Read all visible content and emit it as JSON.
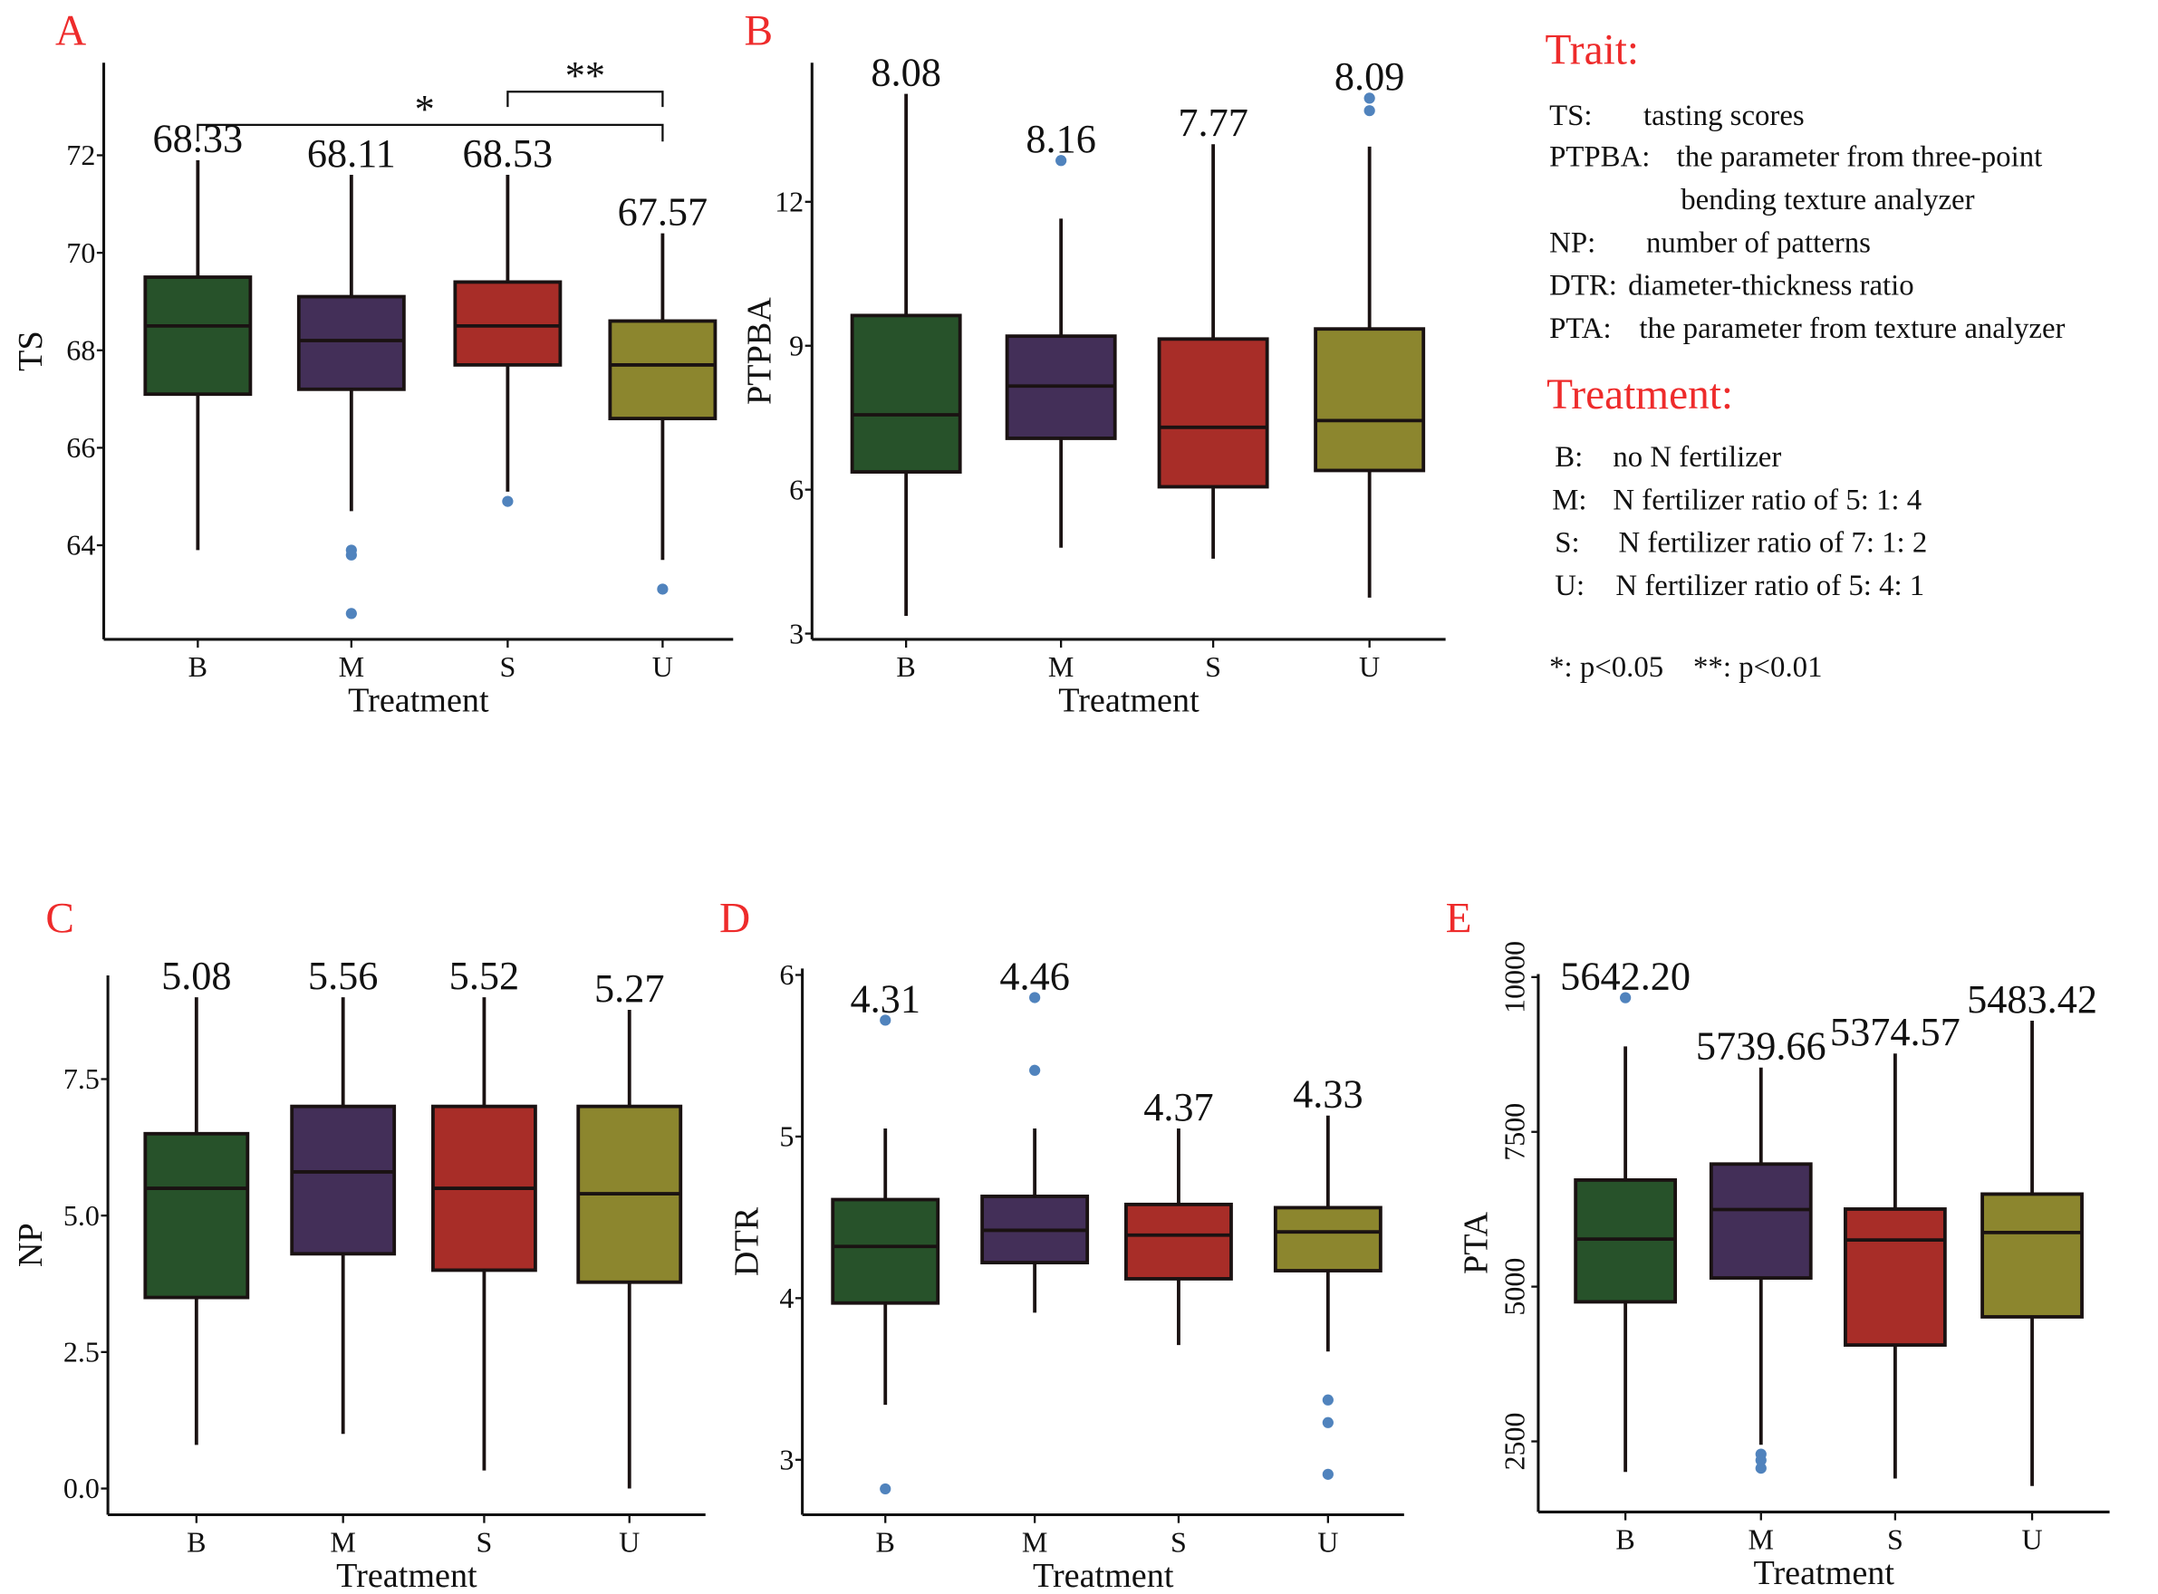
{
  "legend": {
    "trait_title": "Trait:",
    "traits": [
      {
        "abbr": "TS:",
        "text": "tasting scores"
      },
      {
        "abbr": "PTPBA:",
        "text": "the parameter from three-point"
      },
      {
        "abbr": "",
        "text": "bending texture analyzer"
      },
      {
        "abbr": "NP:",
        "text": "number of patterns"
      },
      {
        "abbr": "DTR:",
        "text": "diameter-thickness ratio"
      },
      {
        "abbr": "PTA:",
        "text": "the parameter from texture analyzer"
      }
    ],
    "treatment_title": "Treatment:",
    "treatments": [
      {
        "abbr": "B:",
        "text": "no N fertilizer"
      },
      {
        "abbr": "M:",
        "text": "N fertilizer ratio of 5: 1: 4"
      },
      {
        "abbr": "S:",
        "text": "N fertilizer ratio of 7: 1: 2"
      },
      {
        "abbr": "U:",
        "text": "N fertilizer ratio of 5: 4: 1"
      }
    ],
    "footnote": "*: p<0.05    **: p<0.01"
  },
  "colors": {
    "B": "#27522a",
    "M": "#432f58",
    "S": "#a82d28",
    "U": "#8c862e",
    "outlier": "#5083bd",
    "panel_letter": "#ee2b2b"
  },
  "chart_data": [
    {
      "panel": "A",
      "type": "box",
      "ylabel": "TS",
      "xlabel": "Treatment",
      "categories": [
        "B",
        "M",
        "S",
        "U"
      ],
      "yticks": [
        64,
        66,
        68,
        70,
        72
      ],
      "ylim": [
        62.07,
        73.9
      ],
      "grid": false,
      "boxes": [
        {
          "category": "B",
          "whisker_low": 63.9,
          "q1": 67.1,
          "median": 68.5,
          "q3": 69.5,
          "whisker_high": 71.9,
          "outliers": [],
          "mean_label": "68.33"
        },
        {
          "category": "M",
          "whisker_low": 64.7,
          "q1": 67.2,
          "median": 68.2,
          "q3": 69.1,
          "whisker_high": 71.6,
          "outliers": [
            63.9,
            63.8,
            62.6
          ],
          "mean_label": "68.11"
        },
        {
          "category": "S",
          "whisker_low": 65.1,
          "q1": 67.7,
          "median": 68.5,
          "q3": 69.4,
          "whisker_high": 71.6,
          "outliers": [
            64.9
          ],
          "mean_label": "68.53"
        },
        {
          "category": "U",
          "whisker_low": 63.7,
          "q1": 66.6,
          "median": 67.7,
          "q3": 68.6,
          "whisker_high": 70.4,
          "outliers": [
            63.1
          ],
          "mean_label": "67.57"
        }
      ],
      "significance": [
        {
          "from": "B",
          "to": "U",
          "label": "*"
        },
        {
          "from": "S",
          "to": "U",
          "label": "**"
        }
      ]
    },
    {
      "panel": "B",
      "type": "box",
      "ylabel": "PTPBA",
      "xlabel": "Treatment",
      "categories": [
        "B",
        "M",
        "S",
        "U"
      ],
      "yticks": [
        3,
        6,
        9,
        12
      ],
      "ylim": [
        2.88,
        14.9
      ],
      "grid": false,
      "boxes": [
        {
          "category": "B",
          "whisker_low": 3.37,
          "q1": 6.37,
          "median": 7.56,
          "q3": 9.63,
          "whisker_high": 14.25,
          "outliers": [],
          "mean_label": "8.08"
        },
        {
          "category": "M",
          "whisker_low": 4.79,
          "q1": 7.07,
          "median": 8.16,
          "q3": 9.2,
          "whisker_high": 11.65,
          "outliers": [
            12.86
          ],
          "mean_label": "8.16"
        },
        {
          "category": "S",
          "whisker_low": 4.56,
          "q1": 6.06,
          "median": 7.3,
          "q3": 9.14,
          "whisker_high": 13.2,
          "outliers": [],
          "mean_label": "7.77"
        },
        {
          "category": "U",
          "whisker_low": 3.75,
          "q1": 6.4,
          "median": 7.44,
          "q3": 9.35,
          "whisker_high": 13.15,
          "outliers": [
            14.16,
            13.9
          ],
          "mean_label": "8.09"
        }
      ]
    },
    {
      "panel": "C",
      "type": "box",
      "ylabel": "NP",
      "xlabel": "Treatment",
      "categories": [
        "B",
        "M",
        "S",
        "U"
      ],
      "yticks": [
        "0.0",
        "2.5",
        "5.0",
        "7.5"
      ],
      "ylim": [
        -0.48,
        9.4
      ],
      "grid": false,
      "boxes": [
        {
          "category": "B",
          "whisker_low": 0.8,
          "q1": 3.5,
          "median": 5.5,
          "q3": 6.5,
          "whisker_high": 9.0,
          "outliers": [],
          "mean_label": "5.08"
        },
        {
          "category": "M",
          "whisker_low": 1.0,
          "q1": 4.3,
          "median": 5.8,
          "q3": 7.0,
          "whisker_high": 9.0,
          "outliers": [],
          "mean_label": "5.56"
        },
        {
          "category": "S",
          "whisker_low": 0.33,
          "q1": 4.0,
          "median": 5.5,
          "q3": 7.0,
          "whisker_high": 9.0,
          "outliers": [],
          "mean_label": "5.52"
        },
        {
          "category": "U",
          "whisker_low": 0.0,
          "q1": 3.78,
          "median": 5.4,
          "q3": 7.0,
          "whisker_high": 8.77,
          "outliers": [],
          "mean_label": "5.27"
        }
      ]
    },
    {
      "panel": "D",
      "type": "box",
      "ylabel": "DTR",
      "xlabel": "Treatment",
      "categories": [
        "B",
        "M",
        "S",
        "U"
      ],
      "yticks": [
        3,
        4,
        5,
        6
      ],
      "ylim": [
        2.66,
        6.04
      ],
      "grid": false,
      "boxes": [
        {
          "category": "B",
          "whisker_low": 3.34,
          "q1": 3.97,
          "median": 4.32,
          "q3": 4.61,
          "whisker_high": 5.05,
          "outliers": [
            5.72,
            2.82
          ],
          "mean_label": "4.31"
        },
        {
          "category": "M",
          "whisker_low": 3.91,
          "q1": 4.22,
          "median": 4.42,
          "q3": 4.63,
          "whisker_high": 5.05,
          "outliers": [
            5.86,
            5.41
          ],
          "mean_label": "4.46"
        },
        {
          "category": "S",
          "whisker_low": 3.71,
          "q1": 4.12,
          "median": 4.39,
          "q3": 4.58,
          "whisker_high": 5.05,
          "outliers": [],
          "mean_label": "4.37"
        },
        {
          "category": "U",
          "whisker_low": 3.67,
          "q1": 4.17,
          "median": 4.41,
          "q3": 4.56,
          "whisker_high": 5.13,
          "outliers": [
            3.37,
            3.23,
            2.91
          ],
          "mean_label": "4.33"
        }
      ]
    },
    {
      "panel": "E",
      "type": "box",
      "ylabel": "PTA",
      "xlabel": "Treatment",
      "categories": [
        "B",
        "M",
        "S",
        "U"
      ],
      "yticks": [
        2500,
        5000,
        7500,
        10000
      ],
      "ylim": [
        1360,
        10050
      ],
      "grid": false,
      "boxes": [
        {
          "category": "B",
          "whisker_low": 2006,
          "q1": 4754,
          "median": 5768,
          "q3": 6722,
          "whisker_high": 8880,
          "outliers": [
            9667
          ],
          "mean_label": "5642.20"
        },
        {
          "category": "M",
          "whisker_low": 2445,
          "q1": 5140,
          "median": 6245,
          "q3": 6980,
          "whisker_high": 8539,
          "outliers": [
            2294,
            2195,
            2067
          ],
          "mean_label": "5739.66"
        },
        {
          "category": "S",
          "whisker_low": 1900,
          "q1": 4057,
          "median": 5753,
          "q3": 6253,
          "whisker_high": 8766,
          "outliers": [],
          "mean_label": "5374.57"
        },
        {
          "category": "U",
          "whisker_low": 1779,
          "q1": 4512,
          "median": 5874,
          "q3": 6495,
          "whisker_high": 9296,
          "outliers": [],
          "mean_label": "5483.42"
        }
      ]
    }
  ]
}
